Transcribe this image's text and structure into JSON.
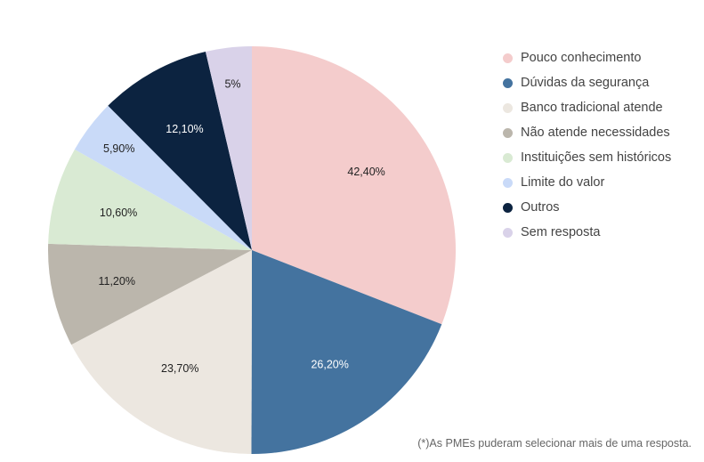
{
  "chart_data": {
    "type": "pie",
    "title": "",
    "start_angle_deg": 0,
    "direction": "clockwise",
    "legend_position": "right",
    "slices": [
      {
        "label": "Pouco conhecimento",
        "value": 42.4,
        "value_label": "42,40%",
        "color": "#f4cccc",
        "label_color": "#222222"
      },
      {
        "label": "Dúvidas da segurança",
        "value": 26.2,
        "value_label": "26,20%",
        "color": "#44739f",
        "label_color": "#ffffff"
      },
      {
        "label": "Banco tradicional atende",
        "value": 23.7,
        "value_label": "23,70%",
        "color": "#ece7e0",
        "label_color": "#222222"
      },
      {
        "label": "Não atende necessidades",
        "value": 11.2,
        "value_label": "11,20%",
        "color": "#bbb6ac",
        "label_color": "#222222"
      },
      {
        "label": "Instituições sem históricos",
        "value": 10.6,
        "value_label": "10,60%",
        "color": "#d9ead3",
        "label_color": "#222222"
      },
      {
        "label": "Limite do valor",
        "value": 5.9,
        "value_label": "5,90%",
        "color": "#c9daf8",
        "label_color": "#222222"
      },
      {
        "label": "Outros",
        "value": 12.1,
        "value_label": "12,10%",
        "color": "#0c2340",
        "label_color": "#ffffff"
      },
      {
        "label": "Sem resposta",
        "value": 5,
        "value_label": "5%",
        "color": "#d9d2e9",
        "label_color": "#222222"
      }
    ]
  },
  "footnote": "(*)As PMEs puderam selecionar mais de uma resposta."
}
